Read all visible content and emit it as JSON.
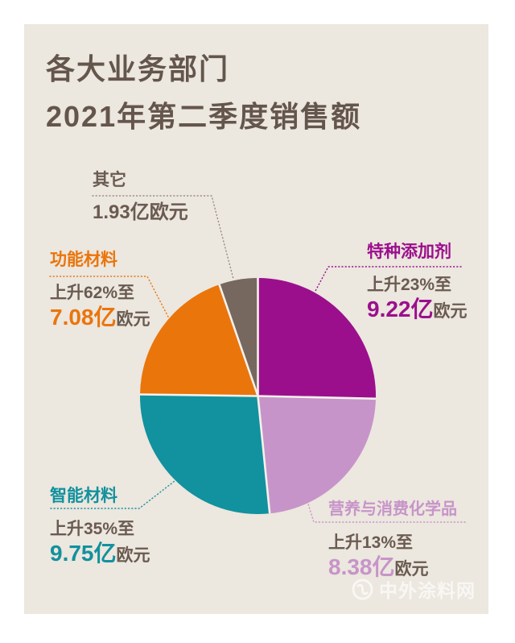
{
  "colors": {
    "background": "#FFFFFF",
    "card": "#ECE7DF",
    "text_brown": "#6A5B51",
    "title_brown": "#64564C",
    "separator": "#F4F1EB",
    "other_leader": "#9B8C7F"
  },
  "title": {
    "line1": "各大业务部门",
    "line2": "2021年第二季度销售额"
  },
  "chart_data": {
    "type": "pie",
    "title": "各大业务部门 2021年第二季度销售额",
    "unit": "亿欧元",
    "total": 36.36,
    "start_angle_deg": 0,
    "direction": "clockwise",
    "legend_position": "around",
    "slices": [
      {
        "id": "specialty",
        "label": "特种添加剂",
        "value": 9.22,
        "change_text": "上升23%至",
        "amount_big": "9.22亿",
        "amount_unit": "欧元",
        "color": "#9B0F8D"
      },
      {
        "id": "nutrition",
        "label": "营养与消费化学品",
        "value": 8.38,
        "change_text": "上升13%至",
        "amount_big": "8.38亿",
        "amount_unit": "欧元",
        "color": "#C794C9"
      },
      {
        "id": "smart",
        "label": "智能材料",
        "value": 9.75,
        "change_text": "上升35%至",
        "amount_big": "9.75亿",
        "amount_unit": "欧元",
        "color": "#12919E"
      },
      {
        "id": "functional",
        "label": "功能材料",
        "value": 7.08,
        "change_text": "上升62%至",
        "amount_big": "7.08亿",
        "amount_unit": "欧元",
        "color": "#EA750B"
      },
      {
        "id": "other",
        "label": "其它",
        "value": 1.93,
        "amount_full": "1.93亿欧元",
        "color": "#77685F"
      }
    ]
  },
  "watermark": {
    "text": "中外涂料网"
  }
}
